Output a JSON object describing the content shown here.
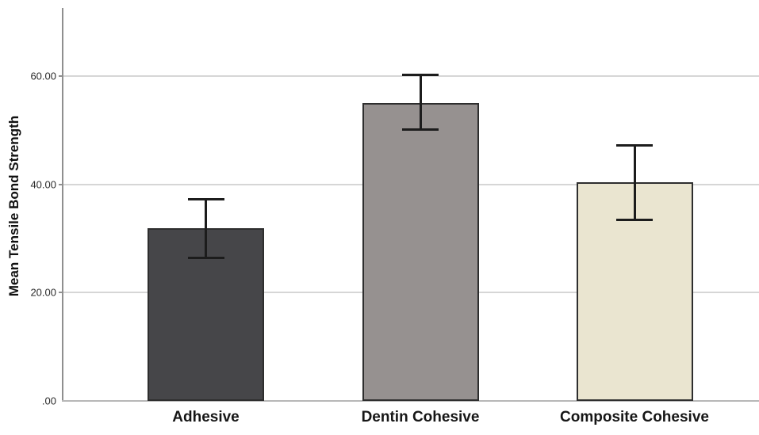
{
  "chart_data": {
    "type": "bar",
    "title": "",
    "xlabel": "",
    "ylabel": "Mean Tensile Bond Strength",
    "ylim": [
      0,
      72.6
    ],
    "grid": true,
    "legend": "none",
    "yticks": [
      {
        "value": 0,
        "label": ".00"
      },
      {
        "value": 20,
        "label": "20.00"
      },
      {
        "value": 40,
        "label": "40.00"
      },
      {
        "value": 60,
        "label": "60.00"
      }
    ],
    "categories": [
      "Adhesive",
      "Dentin Cohesive",
      "Composite Cohesive"
    ],
    "values": [
      31.9,
      55.1,
      40.4
    ],
    "error_upper": [
      37.2,
      60.2,
      47.2
    ],
    "error_lower": [
      26.4,
      50.1,
      33.5
    ],
    "bar_fill_colors": [
      "#464649",
      "#969190",
      "#eae5d0"
    ],
    "bar_border_color": "#2e2e2e",
    "error_bar_color": "#1c1c1c",
    "gridline_color": "#d6d6d6",
    "y_axis_color": "#8f8f8f",
    "x_axis_color": "#b7b7b7",
    "background_color": "#ffffff"
  }
}
